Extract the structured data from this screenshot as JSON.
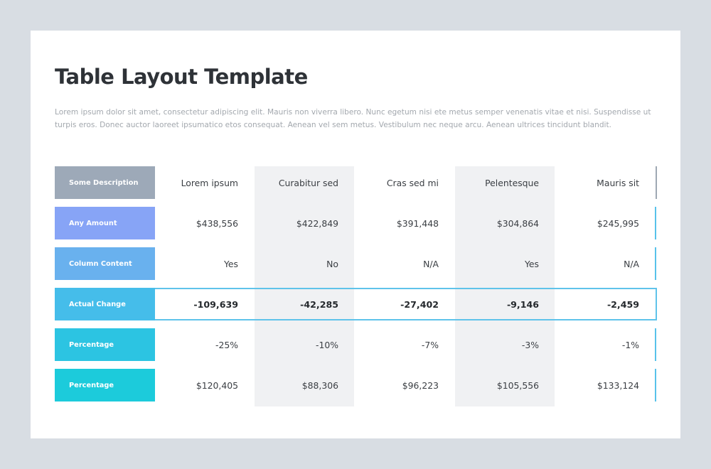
{
  "title": "Table Layout Template",
  "description": "Lorem ipsum dolor sit amet, consectetur adipiscing elit. Mauris non viverra libero. Nunc egetum nisi ete metus semper venenatis vitae et nisi. Suspendisse ut turpis eros. Donec auctor laoreet ipsumatico etos consequat. Aenean vel sem metus. Vestibulum nec neque arcu. Aenean ultrices tincidunt blandit.",
  "table": {
    "header_label": "Some Description",
    "columns": [
      "Lorem ipsum",
      "Curabitur sed",
      "Cras sed mi",
      "Pelentesque",
      "Mauris sit"
    ],
    "rows": [
      {
        "label": "Any Amount",
        "color": "#87a4f6",
        "values": [
          "$438,556",
          "$422,849",
          "$391,448",
          "$304,864",
          "$245,995"
        ]
      },
      {
        "label": "Column Content",
        "color": "#69b1ee",
        "values": [
          "Yes",
          "No",
          "N/A",
          "Yes",
          "N/A"
        ]
      },
      {
        "label": "Actual Change",
        "color": "#45bdea",
        "values": [
          "-109,639",
          "-42,285",
          "-27,402",
          "-9,146",
          "-2,459"
        ]
      },
      {
        "label": "Percentage",
        "color": "#2cc4e2",
        "values": [
          "-25%",
          "-10%",
          "-7%",
          "-3%",
          "-1%"
        ]
      },
      {
        "label": "Percentage",
        "color": "#1ccbdb",
        "values": [
          "$120,405",
          "$88,306",
          "$96,223",
          "$105,556",
          "$133,124"
        ]
      }
    ],
    "header_color": "#9da9b8",
    "highlight_row": 2
  }
}
